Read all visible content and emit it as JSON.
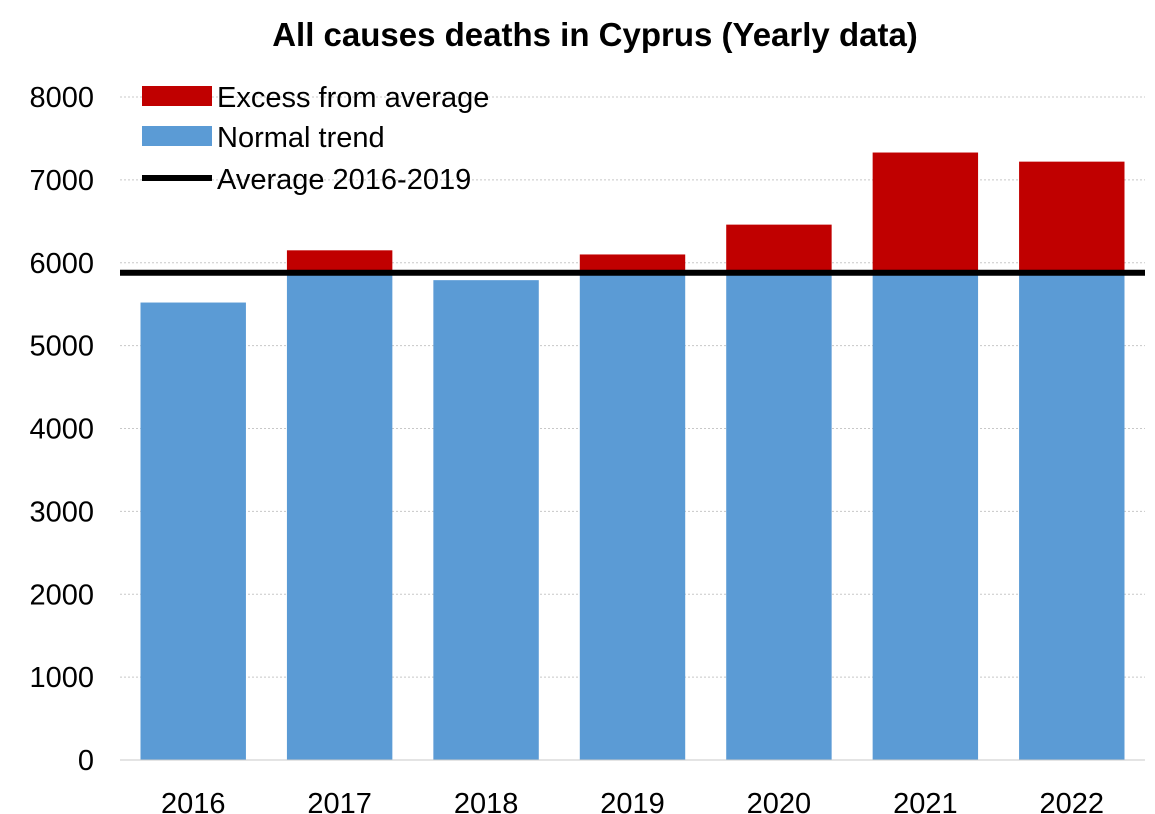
{
  "chart_data": {
    "type": "bar",
    "title": "All causes deaths in Cyprus (Yearly data)",
    "categories": [
      "2016",
      "2017",
      "2018",
      "2019",
      "2020",
      "2021",
      "2022"
    ],
    "series": [
      {
        "name": "Normal trend",
        "color": "#5b9bd5",
        "values": [
          5520,
          5880,
          5790,
          5880,
          5880,
          5880,
          5880
        ]
      },
      {
        "name": "Excess from average",
        "color": "#c00000",
        "values": [
          0,
          270,
          0,
          220,
          580,
          1450,
          1340
        ]
      }
    ],
    "reference_line": {
      "name": "Average 2016-2019",
      "color": "#000000",
      "value": 5880
    },
    "ylim": [
      0,
      8000
    ],
    "yticks": [
      0,
      1000,
      2000,
      3000,
      4000,
      5000,
      6000,
      7000,
      8000
    ],
    "xlabel": "",
    "ylabel": "",
    "grid": true,
    "stacked": true,
    "legend_position": "top-left"
  }
}
